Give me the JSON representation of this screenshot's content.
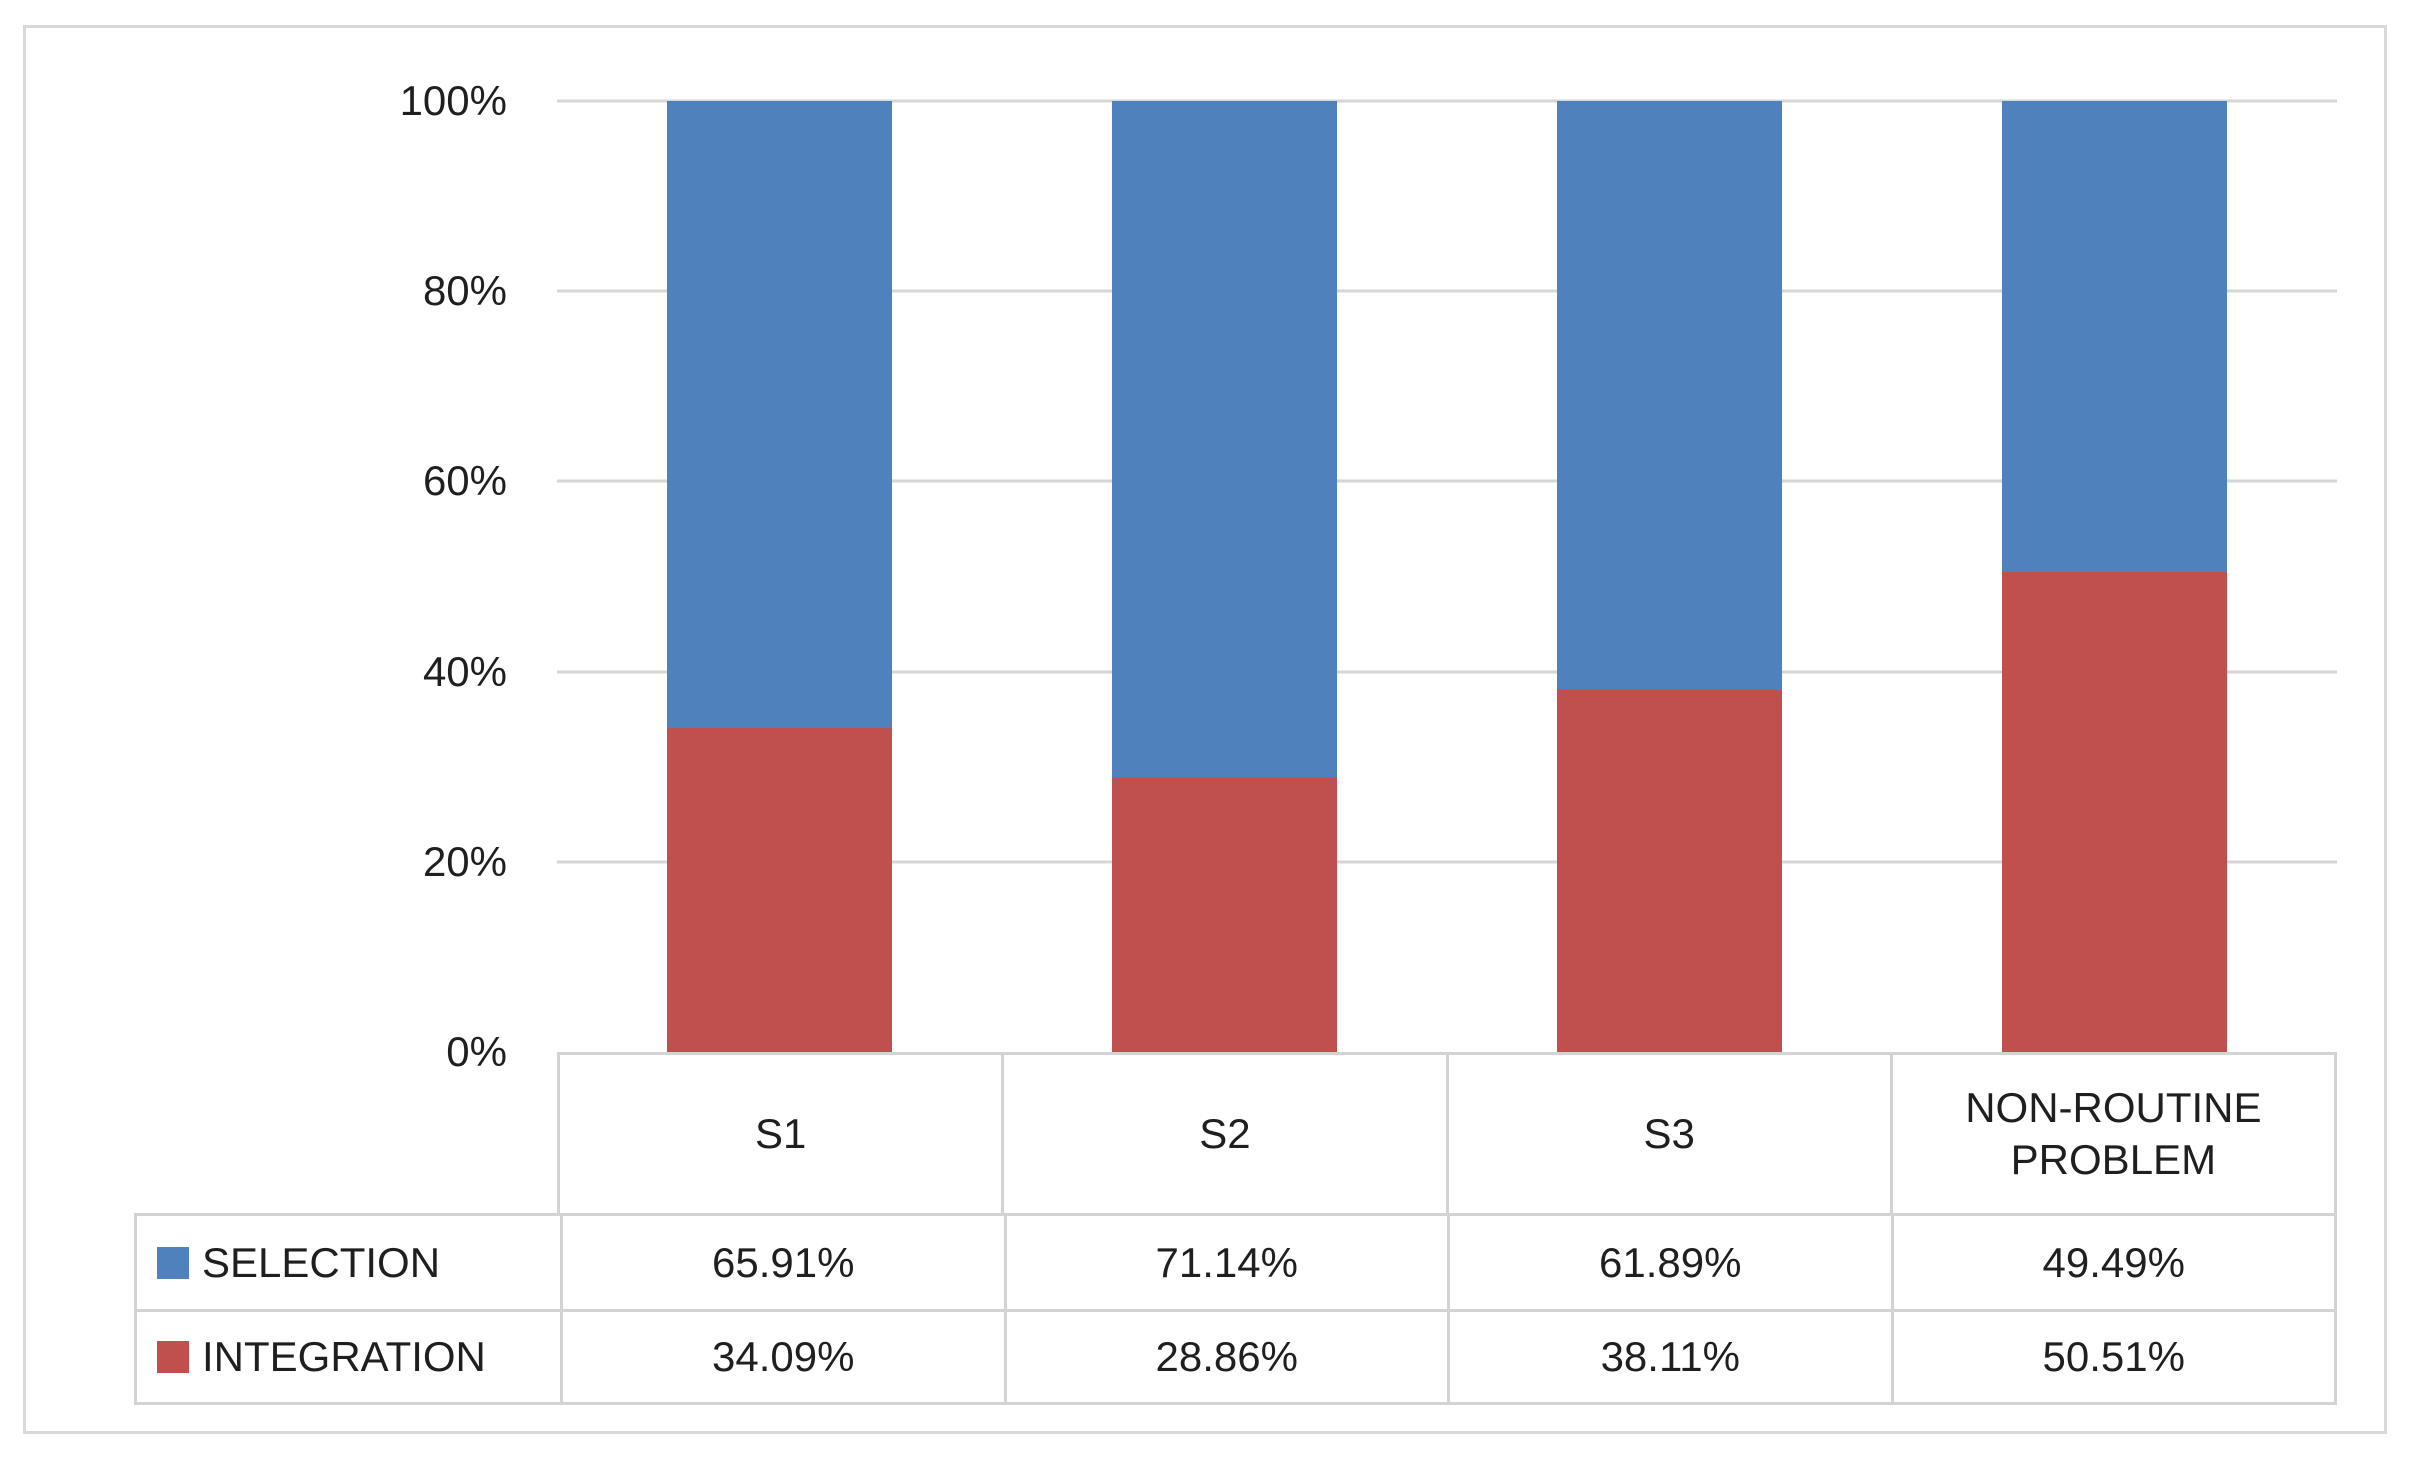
{
  "chart_data": {
    "type": "bar",
    "subtype": "stacked-100-percent-column",
    "title": "",
    "xlabel": "",
    "ylabel": "",
    "categories": [
      "S1",
      "S2",
      "S3",
      "NON-ROUTINE PROBLEM"
    ],
    "series": [
      {
        "name": "SELECTION",
        "color": "#4F81BD",
        "values": [
          65.91,
          71.14,
          61.89,
          49.49
        ]
      },
      {
        "name": "INTEGRATION",
        "color": "#C0504D",
        "values": [
          34.09,
          28.86,
          38.11,
          50.51
        ]
      }
    ],
    "ylim": [
      0,
      100
    ],
    "yticks": [
      "0%",
      "20%",
      "40%",
      "60%",
      "80%",
      "100%"
    ],
    "grid": true,
    "legend_position": "data-table-left"
  },
  "data_table": {
    "header": [
      "S1",
      "S2",
      "S3",
      "NON-ROUTINE PROBLEM"
    ],
    "rows": [
      {
        "label": "SELECTION",
        "swatch": "#4F81BD",
        "cells": [
          "65.91%",
          "71.14%",
          "61.89%",
          "49.49%"
        ]
      },
      {
        "label": "INTEGRATION",
        "swatch": "#C0504D",
        "cells": [
          "34.09%",
          "28.86%",
          "38.11%",
          "50.51%"
        ]
      }
    ]
  },
  "colors": {
    "selection_blue": "#4F81BD",
    "integration_red": "#C0504D",
    "gridline": "#D6D6D6",
    "table_border": "#D3D3D3",
    "frame_border": "#D9D9D9"
  }
}
